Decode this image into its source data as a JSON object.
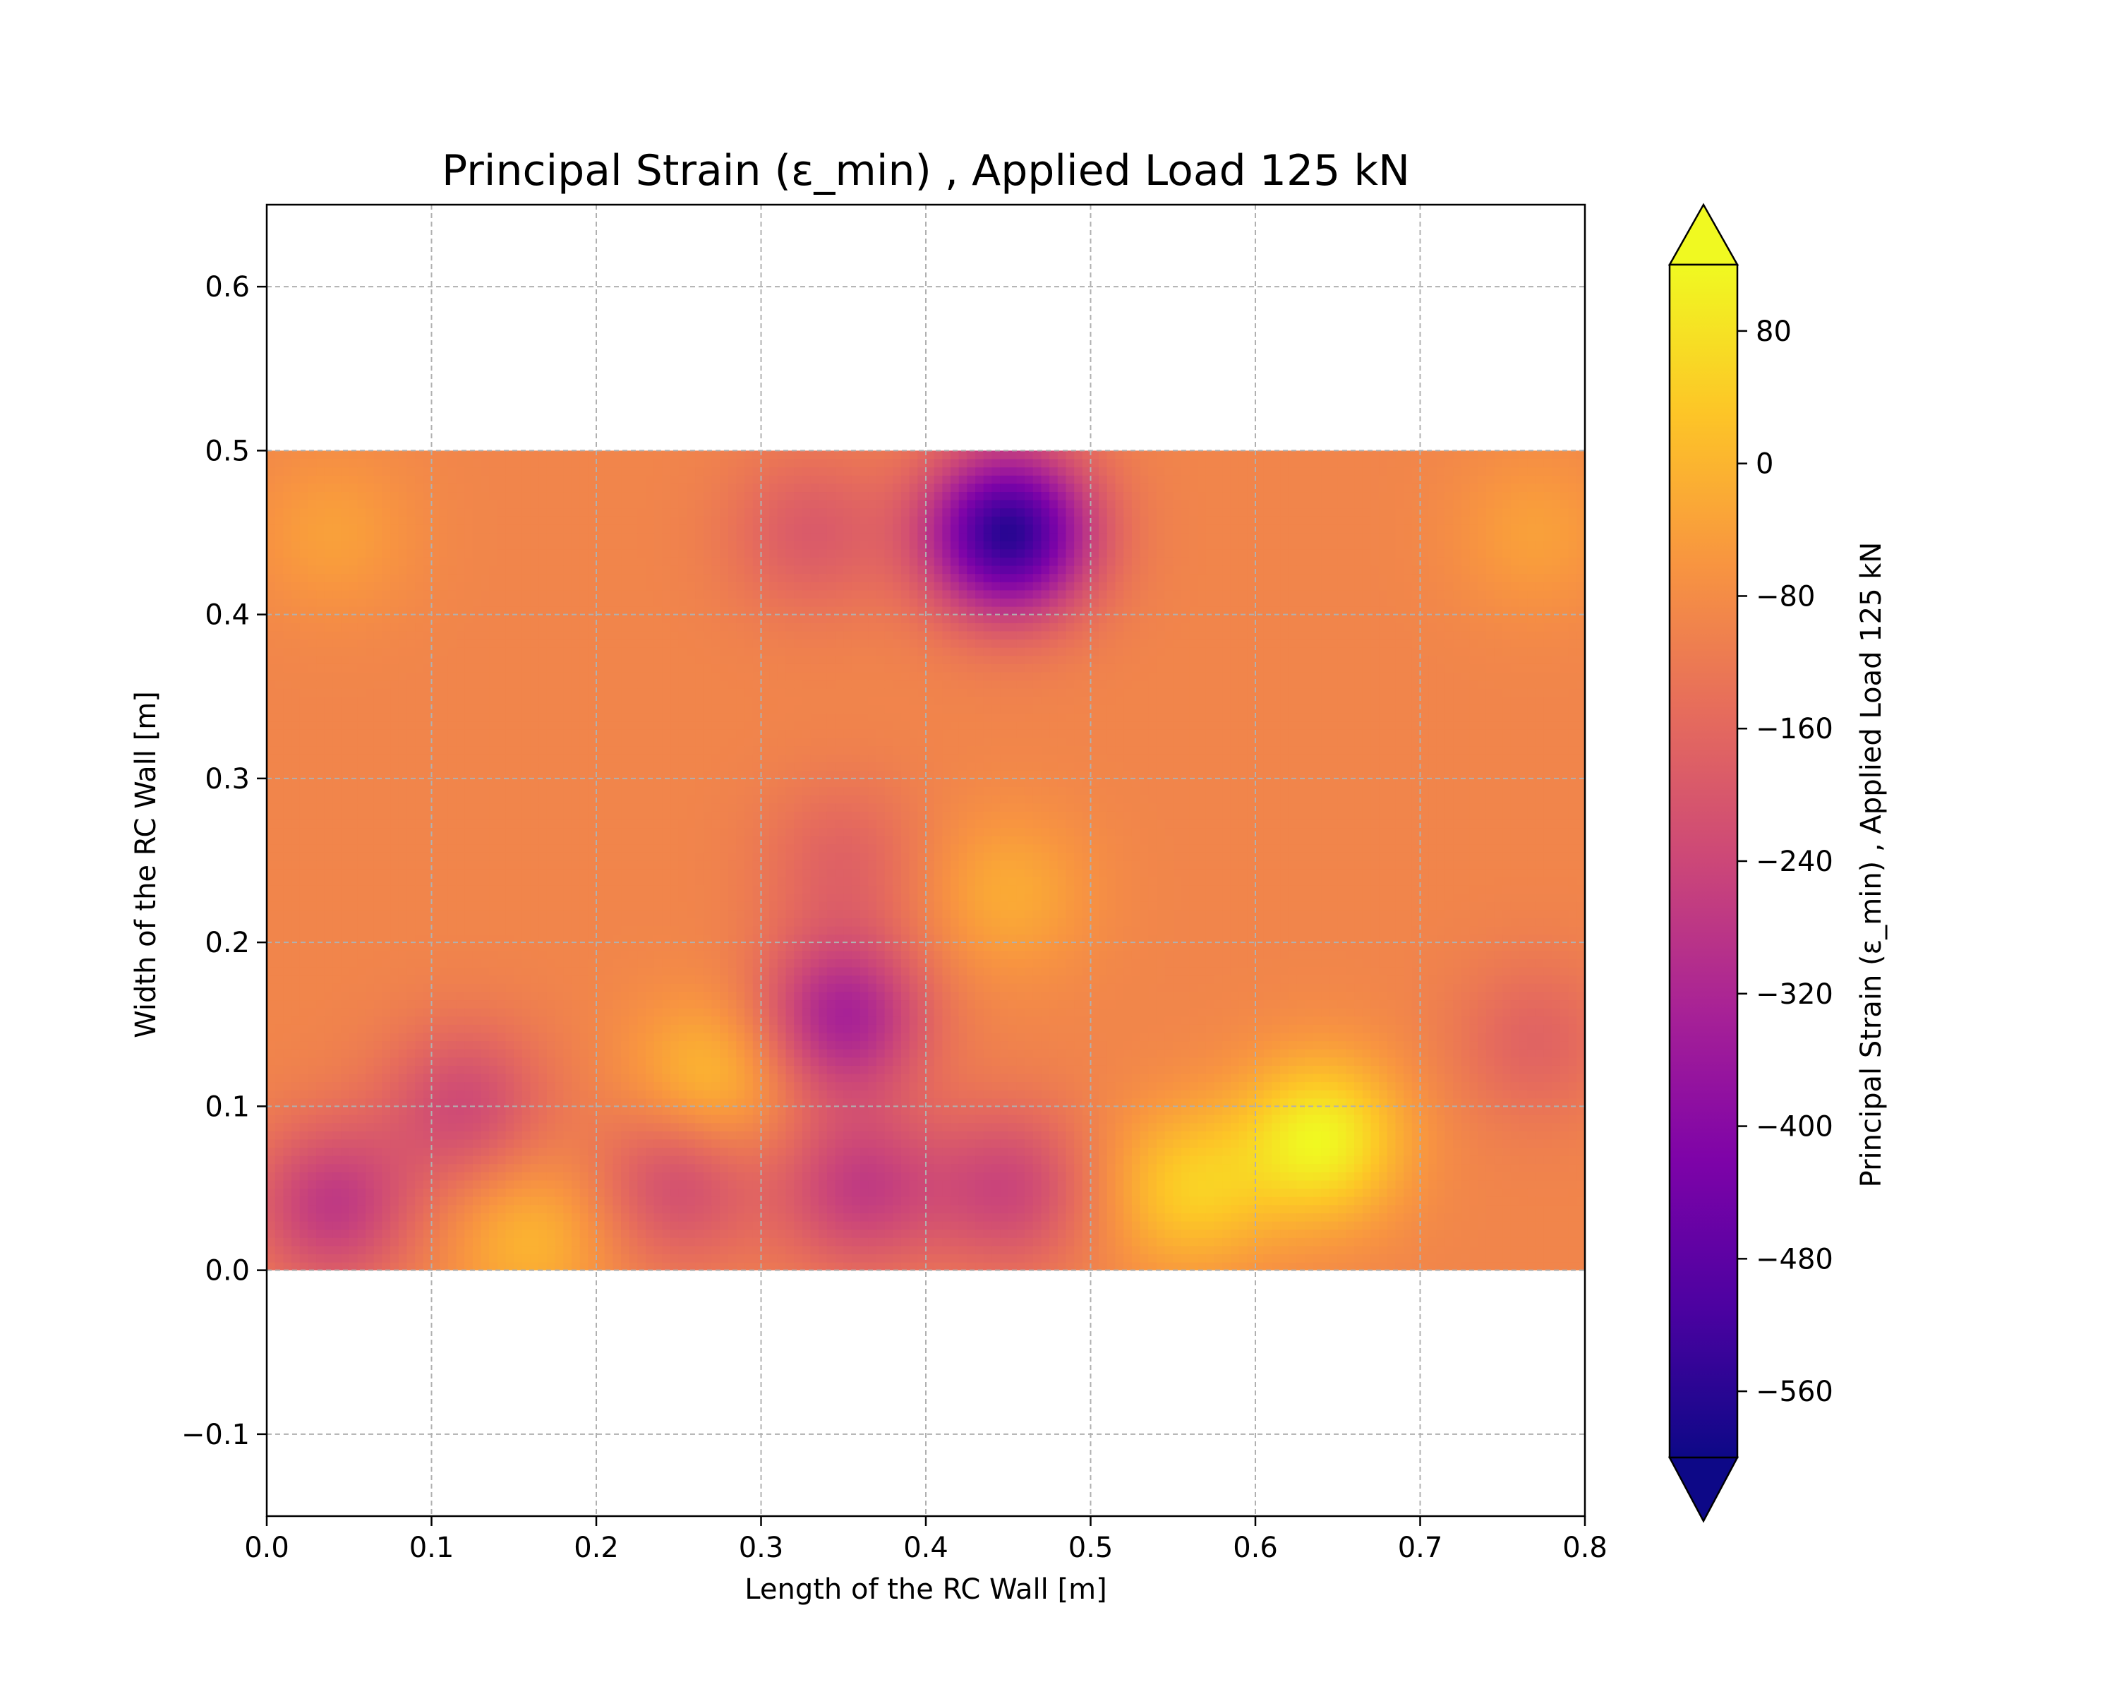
{
  "chart_data": {
    "type": "heatmap",
    "title": "Principal Strain (ε_min) , Applied Load 125 kN",
    "xlabel": "Length of the RC Wall [m]",
    "ylabel": "Width of the RC Wall [m]",
    "xlim": [
      0.0,
      0.8
    ],
    "ylim": [
      -0.15,
      0.65
    ],
    "xticks": [
      "0.0",
      "0.1",
      "0.2",
      "0.3",
      "0.4",
      "0.5",
      "0.6",
      "0.7",
      "0.8"
    ],
    "yticks": [
      "−0.1",
      "0.0",
      "0.1",
      "0.2",
      "0.3",
      "0.4",
      "0.5",
      "0.6"
    ],
    "grid": true,
    "colormap": "plasma",
    "field_extent": {
      "x": [
        0.0,
        0.8
      ],
      "y": [
        0.0,
        0.5
      ]
    },
    "background_value": -95,
    "features": [
      {
        "x": 0.45,
        "y": 0.45,
        "value": -560
      },
      {
        "x": 0.35,
        "y": 0.155,
        "value": -330
      },
      {
        "x": 0.36,
        "y": 0.05,
        "value": -260
      },
      {
        "x": 0.45,
        "y": 0.05,
        "value": -240
      },
      {
        "x": 0.25,
        "y": 0.055,
        "value": -230
      },
      {
        "x": 0.04,
        "y": 0.04,
        "value": -270
      },
      {
        "x": 0.12,
        "y": 0.1,
        "value": -230
      },
      {
        "x": 0.77,
        "y": 0.14,
        "value": -170
      },
      {
        "x": 0.33,
        "y": 0.45,
        "value": -190
      },
      {
        "x": 0.35,
        "y": 0.25,
        "value": -170
      },
      {
        "x": 0.64,
        "y": 0.08,
        "value": 110
      },
      {
        "x": 0.56,
        "y": 0.05,
        "value": 40
      },
      {
        "x": 0.27,
        "y": 0.115,
        "value": 20
      },
      {
        "x": 0.45,
        "y": 0.23,
        "value": -20
      },
      {
        "x": 0.16,
        "y": 0.02,
        "value": 0
      },
      {
        "x": 0.04,
        "y": 0.45,
        "value": -40
      },
      {
        "x": 0.77,
        "y": 0.45,
        "value": -40
      }
    ],
    "colorbar": {
      "label": "Principal Strain (ε_min) , Applied Load 125 kN",
      "ticks": [
        "80",
        "0",
        "−80",
        "−160",
        "−240",
        "−320",
        "−400",
        "−480",
        "−560"
      ],
      "range": [
        -600,
        120
      ],
      "extend": "both"
    }
  }
}
